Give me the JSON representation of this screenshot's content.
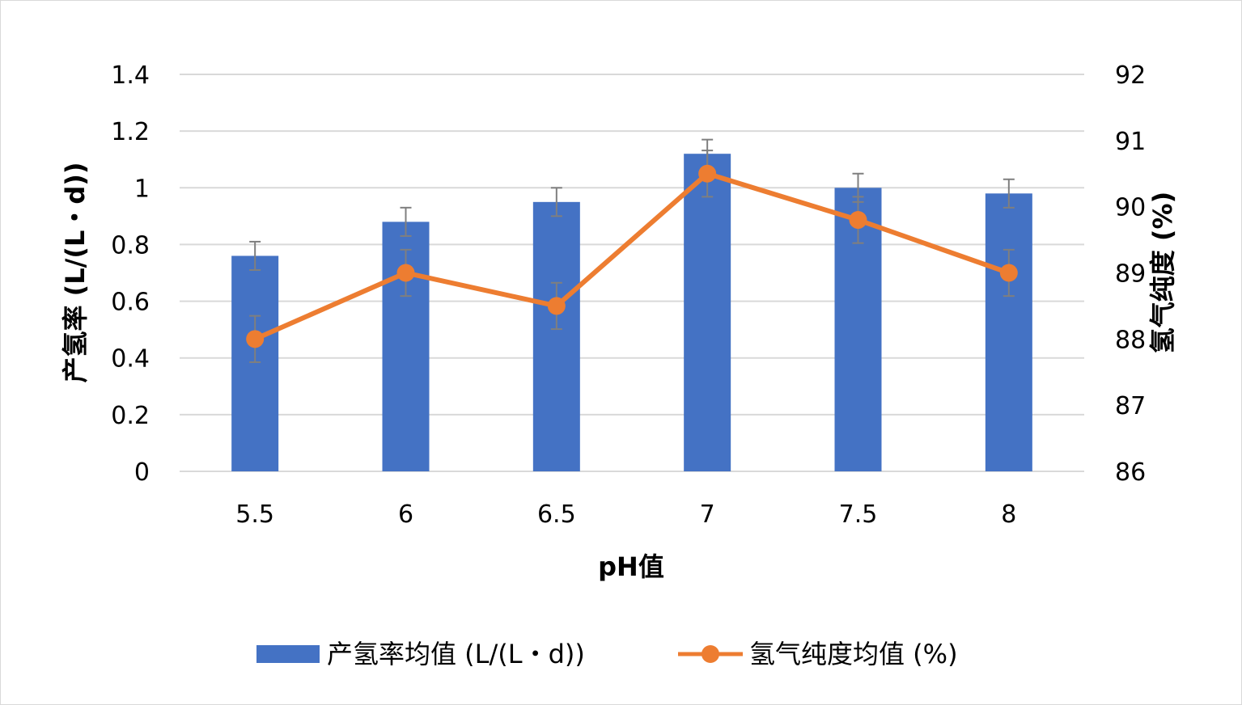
{
  "chart_data": {
    "type": "bar",
    "categories": [
      "5.5",
      "6",
      "6.5",
      "7",
      "7.5",
      "8"
    ],
    "xlabel": "pH值",
    "ylabel": "产氢率 (L/(L・d))",
    "y2label": "氢气纯度 (%)",
    "ylim": [
      0,
      1.4
    ],
    "y_ticks": [
      "0",
      "0.2",
      "0.4",
      "0.6",
      "0.8",
      "1",
      "1.2",
      "1.4"
    ],
    "y2lim": [
      86,
      92
    ],
    "y2_ticks": [
      "86",
      "87",
      "88",
      "89",
      "90",
      "91",
      "92"
    ],
    "grid": true,
    "legend_position": "bottom",
    "series": [
      {
        "name": "产氢率均值 (L/(L・d))",
        "type": "bar",
        "axis": "left",
        "color": "#4472C4",
        "values": [
          0.76,
          0.88,
          0.95,
          1.12,
          1.0,
          0.98
        ],
        "errors": [
          0.05,
          0.05,
          0.05,
          0.05,
          0.05,
          0.05
        ]
      },
      {
        "name": "氢气纯度均值 (%)",
        "type": "line",
        "axis": "right",
        "color": "#ED7D31",
        "values": [
          88.0,
          89.0,
          88.5,
          90.5,
          89.8,
          89.0
        ],
        "errors": [
          0.35,
          0.35,
          0.35,
          0.35,
          0.35,
          0.35
        ]
      }
    ]
  }
}
